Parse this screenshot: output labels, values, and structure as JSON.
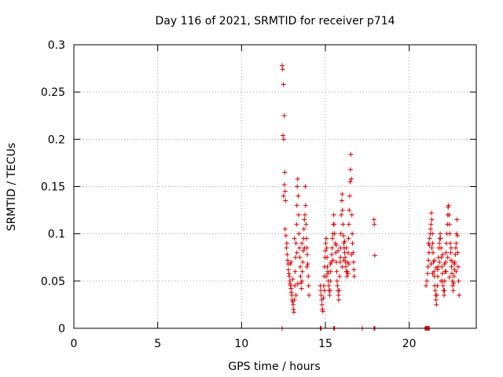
{
  "chart_data": {
    "type": "scatter",
    "title": "Day 116 of 2021, SRMTID for receiver p714",
    "xlabel": "GPS time / hours",
    "ylabel": "SRMTID / TECUs",
    "xlim": [
      0,
      24
    ],
    "ylim": [
      0,
      0.3
    ],
    "x_ticks": [
      0,
      5,
      10,
      15,
      20
    ],
    "x_tick_labels": [
      "0",
      "5",
      "10",
      "15",
      "20"
    ],
    "y_ticks": [
      0,
      0.05,
      0.1,
      0.15,
      0.2,
      0.25,
      0.3
    ],
    "y_tick_labels": [
      "0",
      "0.05",
      "0.1",
      "0.15",
      "0.2",
      "0.25",
      "0.3"
    ],
    "grid": true,
    "marker": "+",
    "series": [
      {
        "name": "SRMTID",
        "color": "#dd0000",
        "points": [
          [
            12.42,
            0.278
          ],
          [
            12.45,
            0.274
          ],
          [
            12.5,
            0.258
          ],
          [
            12.55,
            0.225
          ],
          [
            12.47,
            0.204
          ],
          [
            12.52,
            0.2
          ],
          [
            12.58,
            0.165
          ],
          [
            12.55,
            0.152
          ],
          [
            12.6,
            0.145
          ],
          [
            12.5,
            0.14
          ],
          [
            12.62,
            0.135
          ],
          [
            12.6,
            0.105
          ],
          [
            12.65,
            0.098
          ],
          [
            12.7,
            0.09
          ],
          [
            12.68,
            0.085
          ],
          [
            12.72,
            0.078
          ],
          [
            12.75,
            0.072
          ],
          [
            12.78,
            0.068
          ],
          [
            12.8,
            0.062
          ],
          [
            12.82,
            0.058
          ],
          [
            12.85,
            0.055
          ],
          [
            12.88,
            0.05
          ],
          [
            12.9,
            0.047
          ],
          [
            12.92,
            0.045
          ],
          [
            12.95,
            0.042
          ],
          [
            12.98,
            0.038
          ],
          [
            13.0,
            0.035
          ],
          [
            13.02,
            0.03
          ],
          [
            13.05,
            0.028
          ],
          [
            13.08,
            0.025
          ],
          [
            13.1,
            0.02
          ],
          [
            13.12,
            0.017
          ],
          [
            13.15,
            0.03
          ],
          [
            13.18,
            0.045
          ],
          [
            13.2,
            0.06
          ],
          [
            13.22,
            0.075
          ],
          [
            13.25,
            0.09
          ],
          [
            13.28,
            0.11
          ],
          [
            13.3,
            0.13
          ],
          [
            13.32,
            0.15
          ],
          [
            13.35,
            0.158
          ],
          [
            13.38,
            0.14
          ],
          [
            13.4,
            0.12
          ],
          [
            13.42,
            0.1
          ],
          [
            13.45,
            0.085
          ],
          [
            13.48,
            0.075
          ],
          [
            13.5,
            0.065
          ],
          [
            13.52,
            0.055
          ],
          [
            13.55,
            0.048
          ],
          [
            13.58,
            0.042
          ],
          [
            13.6,
            0.05
          ],
          [
            13.62,
            0.06
          ],
          [
            13.65,
            0.07
          ],
          [
            13.68,
            0.082
          ],
          [
            13.7,
            0.095
          ],
          [
            13.72,
            0.105
          ],
          [
            13.75,
            0.115
          ],
          [
            13.78,
            0.12
          ],
          [
            13.8,
            0.15
          ],
          [
            13.82,
            0.13
          ],
          [
            13.85,
            0.11
          ],
          [
            13.88,
            0.095
          ],
          [
            13.9,
            0.085
          ],
          [
            13.92,
            0.078
          ],
          [
            13.95,
            0.068
          ],
          [
            13.98,
            0.055
          ],
          [
            14.0,
            0.045
          ],
          [
            14.02,
            0.035
          ],
          [
            13.35,
            0.047
          ],
          [
            13.25,
            0.035
          ],
          [
            13.15,
            0.095
          ],
          [
            12.95,
            0.07
          ],
          [
            12.9,
            0.068
          ],
          [
            13.05,
            0.052
          ],
          [
            13.3,
            0.08
          ],
          [
            13.6,
            0.09
          ],
          [
            13.75,
            0.085
          ],
          [
            13.9,
            0.065
          ],
          [
            14.7,
            0.045
          ],
          [
            14.72,
            0.04
          ],
          [
            14.75,
            0.035
          ],
          [
            14.78,
            0.03
          ],
          [
            14.8,
            0.025
          ],
          [
            14.82,
            0.02
          ],
          [
            14.85,
            0.018
          ],
          [
            14.88,
            0.032
          ],
          [
            14.9,
            0.045
          ],
          [
            14.92,
            0.055
          ],
          [
            14.95,
            0.065
          ],
          [
            14.98,
            0.075
          ],
          [
            15.0,
            0.082
          ],
          [
            15.02,
            0.09
          ],
          [
            15.05,
            0.095
          ],
          [
            15.08,
            0.085
          ],
          [
            15.1,
            0.075
          ],
          [
            15.12,
            0.065
          ],
          [
            15.15,
            0.058
          ],
          [
            15.18,
            0.05
          ],
          [
            15.2,
            0.045
          ],
          [
            15.22,
            0.04
          ],
          [
            15.25,
            0.035
          ],
          [
            15.28,
            0.04
          ],
          [
            15.3,
            0.05
          ],
          [
            15.32,
            0.06
          ],
          [
            15.35,
            0.07
          ],
          [
            15.38,
            0.078
          ],
          [
            15.4,
            0.085
          ],
          [
            15.42,
            0.095
          ],
          [
            15.45,
            0.1
          ],
          [
            15.48,
            0.11
          ],
          [
            15.5,
            0.12
          ],
          [
            15.52,
            0.11
          ],
          [
            15.55,
            0.1
          ],
          [
            14.95,
            0.04
          ],
          [
            15.05,
            0.055
          ],
          [
            15.15,
            0.06
          ],
          [
            15.3,
            0.068
          ],
          [
            15.45,
            0.072
          ],
          [
            15.6,
            0.09
          ],
          [
            15.62,
            0.08
          ],
          [
            15.65,
            0.07
          ],
          [
            15.68,
            0.06
          ],
          [
            15.7,
            0.05
          ],
          [
            15.72,
            0.045
          ],
          [
            15.75,
            0.04
          ],
          [
            15.78,
            0.035
          ],
          [
            15.8,
            0.03
          ],
          [
            15.82,
            0.04
          ],
          [
            15.85,
            0.055
          ],
          [
            15.88,
            0.07
          ],
          [
            15.9,
            0.085
          ],
          [
            15.92,
            0.1
          ],
          [
            15.95,
            0.12
          ],
          [
            15.98,
            0.135
          ],
          [
            16.0,
            0.142
          ],
          [
            16.02,
            0.125
          ],
          [
            16.05,
            0.11
          ],
          [
            16.08,
            0.098
          ],
          [
            16.1,
            0.09
          ],
          [
            16.12,
            0.085
          ],
          [
            16.15,
            0.08
          ],
          [
            16.18,
            0.075
          ],
          [
            16.2,
            0.07
          ],
          [
            16.22,
            0.065
          ],
          [
            16.25,
            0.06
          ],
          [
            16.28,
            0.055
          ],
          [
            16.3,
            0.06
          ],
          [
            16.32,
            0.07
          ],
          [
            16.35,
            0.08
          ],
          [
            16.38,
            0.095
          ],
          [
            16.4,
            0.11
          ],
          [
            16.42,
            0.125
          ],
          [
            16.45,
            0.14
          ],
          [
            16.48,
            0.155
          ],
          [
            16.5,
            0.168
          ],
          [
            16.52,
            0.184
          ],
          [
            16.55,
            0.158
          ],
          [
            16.58,
            0.12
          ],
          [
            16.6,
            0.1
          ],
          [
            16.62,
            0.09
          ],
          [
            16.65,
            0.08
          ],
          [
            16.68,
            0.07
          ],
          [
            16.7,
            0.062
          ],
          [
            16.72,
            0.055
          ],
          [
            16.0,
            0.065
          ],
          [
            15.9,
            0.075
          ],
          [
            16.1,
            0.072
          ],
          [
            16.25,
            0.085
          ],
          [
            16.4,
            0.068
          ],
          [
            15.75,
            0.082
          ],
          [
            15.65,
            0.088
          ],
          [
            16.55,
            0.078
          ],
          [
            16.35,
            0.058
          ],
          [
            16.15,
            0.092
          ],
          [
            17.9,
            0.115
          ],
          [
            17.92,
            0.11
          ],
          [
            17.95,
            0.077
          ],
          [
            21.0,
            0.045
          ],
          [
            21.05,
            0.05
          ],
          [
            21.1,
            0.058
          ],
          [
            21.12,
            0.065
          ],
          [
            21.15,
            0.072
          ],
          [
            21.18,
            0.08
          ],
          [
            21.2,
            0.088
          ],
          [
            21.22,
            0.095
          ],
          [
            21.25,
            0.1
          ],
          [
            21.28,
            0.105
          ],
          [
            21.3,
            0.11
          ],
          [
            21.32,
            0.122
          ],
          [
            21.35,
            0.115
          ],
          [
            21.38,
            0.1
          ],
          [
            21.4,
            0.09
          ],
          [
            21.42,
            0.08
          ],
          [
            21.45,
            0.07
          ],
          [
            21.48,
            0.06
          ],
          [
            21.5,
            0.055
          ],
          [
            21.52,
            0.045
          ],
          [
            21.55,
            0.04
          ],
          [
            21.58,
            0.035
          ],
          [
            21.6,
            0.03
          ],
          [
            21.62,
            0.025
          ],
          [
            21.65,
            0.035
          ],
          [
            21.68,
            0.045
          ],
          [
            21.7,
            0.055
          ],
          [
            21.72,
            0.065
          ],
          [
            21.75,
            0.075
          ],
          [
            21.78,
            0.085
          ],
          [
            21.8,
            0.09
          ],
          [
            21.82,
            0.095
          ],
          [
            21.85,
            0.1
          ],
          [
            21.88,
            0.095
          ],
          [
            21.9,
            0.085
          ],
          [
            21.92,
            0.075
          ],
          [
            21.95,
            0.065
          ],
          [
            21.98,
            0.058
          ],
          [
            22.0,
            0.05
          ],
          [
            22.02,
            0.045
          ],
          [
            22.05,
            0.04
          ],
          [
            22.08,
            0.035
          ],
          [
            22.1,
            0.04
          ],
          [
            22.12,
            0.05
          ],
          [
            22.15,
            0.06
          ],
          [
            22.18,
            0.07
          ],
          [
            22.2,
            0.08
          ],
          [
            22.22,
            0.09
          ],
          [
            22.25,
            0.1
          ],
          [
            22.28,
            0.11
          ],
          [
            22.3,
            0.12
          ],
          [
            22.32,
            0.128
          ],
          [
            22.35,
            0.13
          ],
          [
            22.38,
            0.12
          ],
          [
            22.4,
            0.11
          ],
          [
            22.42,
            0.1
          ],
          [
            22.45,
            0.09
          ],
          [
            22.48,
            0.08
          ],
          [
            22.5,
            0.072
          ],
          [
            22.52,
            0.065
          ],
          [
            22.55,
            0.058
          ],
          [
            22.58,
            0.05
          ],
          [
            22.6,
            0.045
          ],
          [
            22.62,
            0.04
          ],
          [
            22.65,
            0.048
          ],
          [
            22.68,
            0.055
          ],
          [
            22.7,
            0.062
          ],
          [
            22.72,
            0.07
          ],
          [
            22.75,
            0.078
          ],
          [
            22.78,
            0.085
          ],
          [
            22.8,
            0.09
          ],
          [
            22.82,
            0.1
          ],
          [
            22.85,
            0.115
          ],
          [
            22.88,
            0.098
          ],
          [
            22.9,
            0.08
          ],
          [
            22.92,
            0.065
          ],
          [
            22.95,
            0.05
          ],
          [
            22.98,
            0.035
          ],
          [
            21.3,
            0.068
          ],
          [
            21.5,
            0.072
          ],
          [
            21.7,
            0.062
          ],
          [
            21.9,
            0.05
          ],
          [
            22.1,
            0.068
          ],
          [
            22.3,
            0.075
          ],
          [
            22.5,
            0.085
          ],
          [
            22.7,
            0.068
          ],
          [
            21.4,
            0.058
          ],
          [
            21.6,
            0.064
          ],
          [
            21.8,
            0.07
          ],
          [
            22.0,
            0.078
          ],
          [
            22.2,
            0.06
          ],
          [
            22.4,
            0.054
          ],
          [
            22.6,
            0.07
          ],
          [
            22.8,
            0.06
          ],
          [
            21.15,
            0.09
          ],
          [
            21.35,
            0.085
          ],
          [
            12.42,
            0.0
          ],
          [
            14.7,
            0.0
          ],
          [
            14.75,
            0.0
          ],
          [
            15.5,
            0.0
          ],
          [
            15.55,
            0.0
          ],
          [
            17.2,
            0.0
          ],
          [
            17.9,
            0.0
          ],
          [
            17.95,
            0.0
          ],
          [
            20.95,
            0.0
          ],
          [
            21.0,
            0.0
          ],
          [
            21.05,
            0.0
          ],
          [
            21.1,
            0.0
          ],
          [
            21.15,
            0.0
          ],
          [
            21.2,
            0.0
          ]
        ]
      }
    ]
  }
}
